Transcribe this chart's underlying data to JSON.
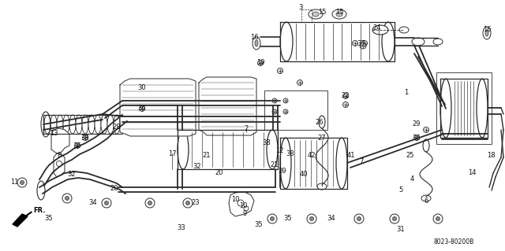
{
  "bg_color": "#ffffff",
  "fig_width": 6.4,
  "fig_height": 3.19,
  "dpi": 100,
  "part_number_code": "8023-80200B",
  "line_color": "#2a2a2a",
  "text_color": "#111111",
  "callouts": [
    [
      "1",
      515,
      118
    ],
    [
      "2",
      312,
      163
    ],
    [
      "3",
      381,
      10
    ],
    [
      "4",
      522,
      228
    ],
    [
      "5",
      508,
      242
    ],
    [
      "6",
      540,
      256
    ],
    [
      "7",
      458,
      205
    ],
    [
      "8",
      75,
      197
    ],
    [
      "9",
      310,
      272
    ],
    [
      "10",
      298,
      253
    ],
    [
      "10",
      308,
      262
    ],
    [
      "11",
      18,
      232
    ],
    [
      "12",
      354,
      192
    ],
    [
      "13",
      68,
      170
    ],
    [
      "14",
      598,
      220
    ],
    [
      "15",
      408,
      15
    ],
    [
      "15",
      430,
      15
    ],
    [
      "16",
      322,
      48
    ],
    [
      "16",
      617,
      38
    ],
    [
      "17",
      218,
      195
    ],
    [
      "18",
      622,
      198
    ],
    [
      "19",
      330,
      80
    ],
    [
      "20",
      145,
      240
    ],
    [
      "20",
      278,
      220
    ],
    [
      "21",
      262,
      198
    ],
    [
      "21",
      348,
      210
    ],
    [
      "22",
      438,
      122
    ],
    [
      "23",
      248,
      258
    ],
    [
      "24",
      478,
      35
    ],
    [
      "25",
      520,
      198
    ],
    [
      "26",
      405,
      155
    ],
    [
      "27",
      408,
      175
    ],
    [
      "28",
      148,
      162
    ],
    [
      "29",
      528,
      158
    ],
    [
      "30",
      180,
      112
    ],
    [
      "31",
      508,
      292
    ],
    [
      "32",
      91,
      222
    ],
    [
      "32",
      250,
      212
    ],
    [
      "33",
      230,
      290
    ],
    [
      "34",
      118,
      258
    ],
    [
      "34",
      420,
      278
    ],
    [
      "35",
      62,
      278
    ],
    [
      "35",
      328,
      285
    ],
    [
      "35",
      365,
      278
    ],
    [
      "36",
      98,
      185
    ],
    [
      "36",
      180,
      138
    ],
    [
      "36",
      528,
      175
    ],
    [
      "37",
      458,
      55
    ],
    [
      "38",
      108,
      175
    ],
    [
      "38",
      338,
      182
    ],
    [
      "38",
      368,
      195
    ],
    [
      "39",
      358,
      218
    ],
    [
      "40",
      385,
      222
    ],
    [
      "41",
      445,
      198
    ],
    [
      "42",
      395,
      198
    ]
  ]
}
